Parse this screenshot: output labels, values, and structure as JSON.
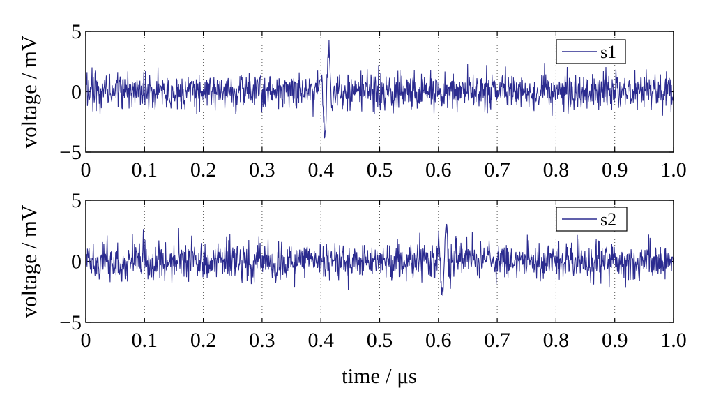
{
  "chart_data": [
    {
      "type": "line",
      "title": "",
      "xlabel": "",
      "ylabel": "voltage / mV",
      "xlim": [
        0,
        1.0
      ],
      "ylim": [
        -5,
        5
      ],
      "xticks": [
        0,
        0.1,
        0.2,
        0.3,
        0.4,
        0.5,
        0.6,
        0.7,
        0.8,
        0.9,
        1.0
      ],
      "xtick_labels": [
        "0",
        "0.1",
        "0.2",
        "0.3",
        "0.4",
        "0.5",
        "0.6",
        "0.7",
        "0.8",
        "0.9",
        "1.0"
      ],
      "yticks": [
        -5,
        0,
        5
      ],
      "ytick_labels": [
        "−5",
        "0",
        "5"
      ],
      "grid": "vertical dotted",
      "legend_position": "top-right",
      "series": [
        {
          "name": "s1",
          "color": "#2b2b8f",
          "noise_std_mV": 0.8,
          "pulse": {
            "center_us": 0.41,
            "width_us": 0.006,
            "peak_max_mV": 4.5,
            "peak_min_mV": -4.2
          }
        }
      ]
    },
    {
      "type": "line",
      "title": "",
      "xlabel": "time / μs",
      "ylabel": "voltage / mV",
      "xlim": [
        0,
        1.0
      ],
      "ylim": [
        -5,
        5
      ],
      "xticks": [
        0,
        0.1,
        0.2,
        0.3,
        0.4,
        0.5,
        0.6,
        0.7,
        0.8,
        0.9,
        1.0
      ],
      "xtick_labels": [
        "0",
        "0.1",
        "0.2",
        "0.3",
        "0.4",
        "0.5",
        "0.6",
        "0.7",
        "0.8",
        "0.9",
        "1.0"
      ],
      "yticks": [
        -5,
        0,
        5
      ],
      "ytick_labels": [
        "−5",
        "0",
        "5"
      ],
      "grid": "vertical dotted",
      "legend_position": "top-right",
      "series": [
        {
          "name": "s2",
          "color": "#2b2b8f",
          "noise_std_mV": 0.8,
          "pulse": {
            "center_us": 0.61,
            "width_us": 0.006,
            "peak_max_mV": 2.9,
            "peak_min_mV": -3.7
          }
        }
      ]
    }
  ]
}
